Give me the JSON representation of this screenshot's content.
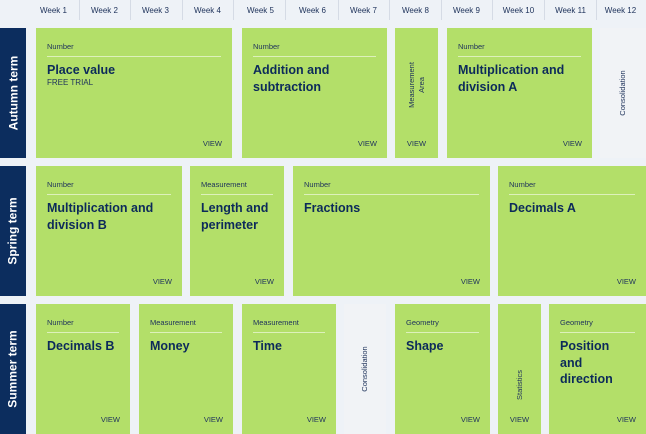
{
  "weeks": [
    "Week 1",
    "Week 2",
    "Week 3",
    "Week 4",
    "Week 5",
    "Week 6",
    "Week 7",
    "Week 8",
    "Week 9",
    "Week 10",
    "Week 11",
    "Week 12"
  ],
  "terms": {
    "autumn": "Autumn term",
    "spring": "Spring term",
    "summer": "Summer term"
  },
  "view_label": "VIEW",
  "autumn": {
    "place_value": {
      "category": "Number",
      "title": "Place value",
      "subtitle": "FREE TRIAL"
    },
    "addition": {
      "category": "Number",
      "title": "Addition and subtraction"
    },
    "area": {
      "category": "Measurement",
      "title": "Area"
    },
    "multdiv_a": {
      "category": "Number",
      "title": "Multiplication and division A"
    },
    "consolidation": {
      "title": "Consolidation"
    }
  },
  "spring": {
    "multdiv_b": {
      "category": "Number",
      "title": "Multiplication and division B"
    },
    "length": {
      "category": "Measurement",
      "title": "Length and perimeter"
    },
    "fractions": {
      "category": "Number",
      "title": "Fractions"
    },
    "decimals_a": {
      "category": "Number",
      "title": "Decimals A"
    }
  },
  "summer": {
    "decimals_b": {
      "category": "Number",
      "title": "Decimals B"
    },
    "money": {
      "category": "Measurement",
      "title": "Money"
    },
    "time": {
      "category": "Measurement",
      "title": "Time"
    },
    "consolidation": {
      "title": "Consolidation"
    },
    "shape": {
      "category": "Geometry",
      "title": "Shape"
    },
    "statistics": {
      "title": "Statistics"
    },
    "position": {
      "category": "Geometry",
      "title": "Position and direction"
    }
  }
}
